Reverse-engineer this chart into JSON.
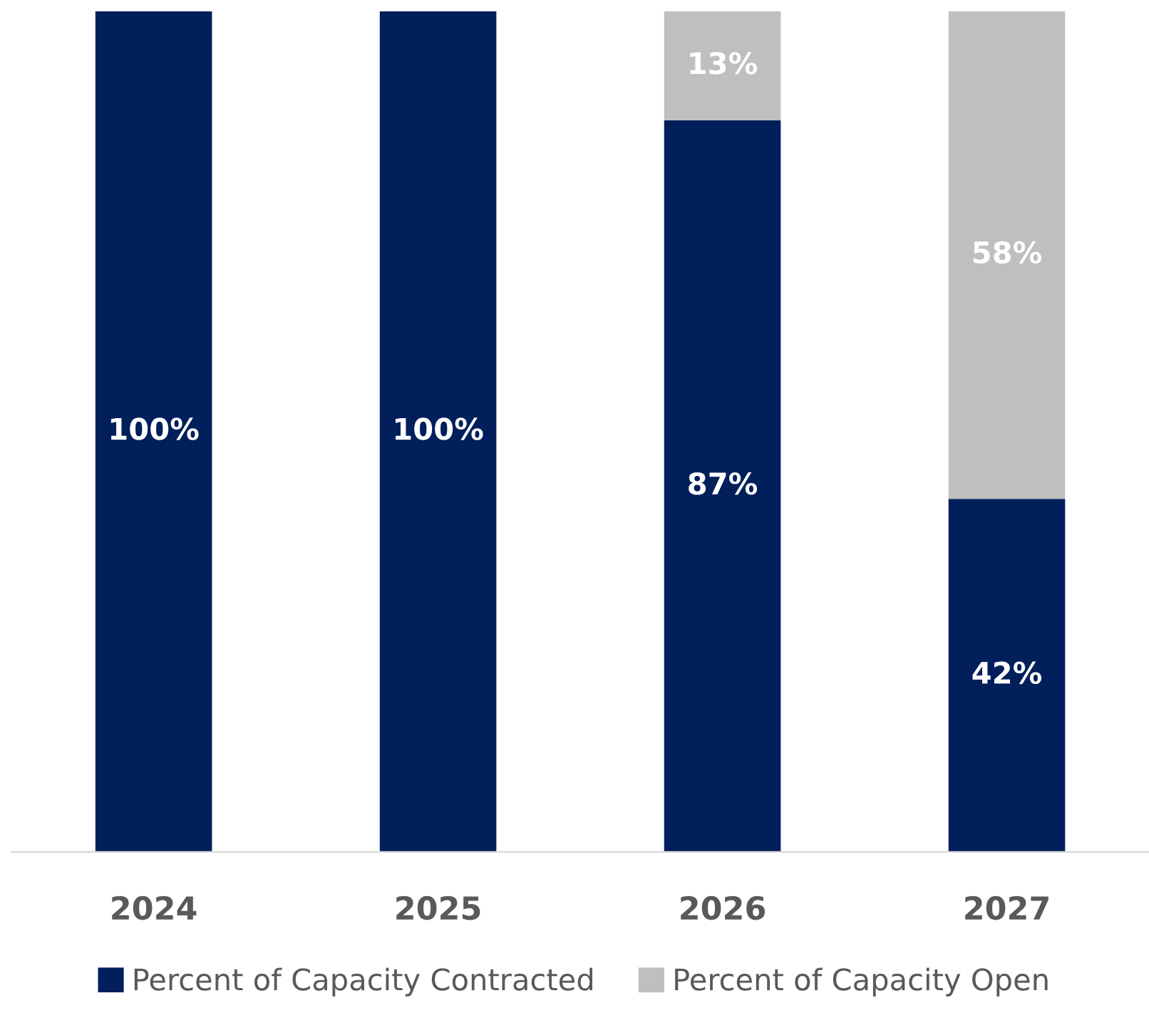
{
  "chart_data": {
    "type": "bar",
    "stacked": true,
    "categories": [
      "2024",
      "2025",
      "2026",
      "2027"
    ],
    "series": [
      {
        "name": "Percent of Capacity Contracted",
        "color": "#001f5b",
        "values": [
          100,
          100,
          87,
          42
        ],
        "value_labels": [
          "100%",
          "100%",
          "87%",
          "42%"
        ]
      },
      {
        "name": "Percent of Capacity Open",
        "color": "#bfbfbf",
        "values": [
          null,
          null,
          13,
          58
        ],
        "value_labels": [
          null,
          null,
          "13%",
          "58%"
        ]
      }
    ],
    "ylim": [
      0,
      100
    ],
    "tick_labels": "x",
    "grid": false,
    "legend": "bottom"
  }
}
